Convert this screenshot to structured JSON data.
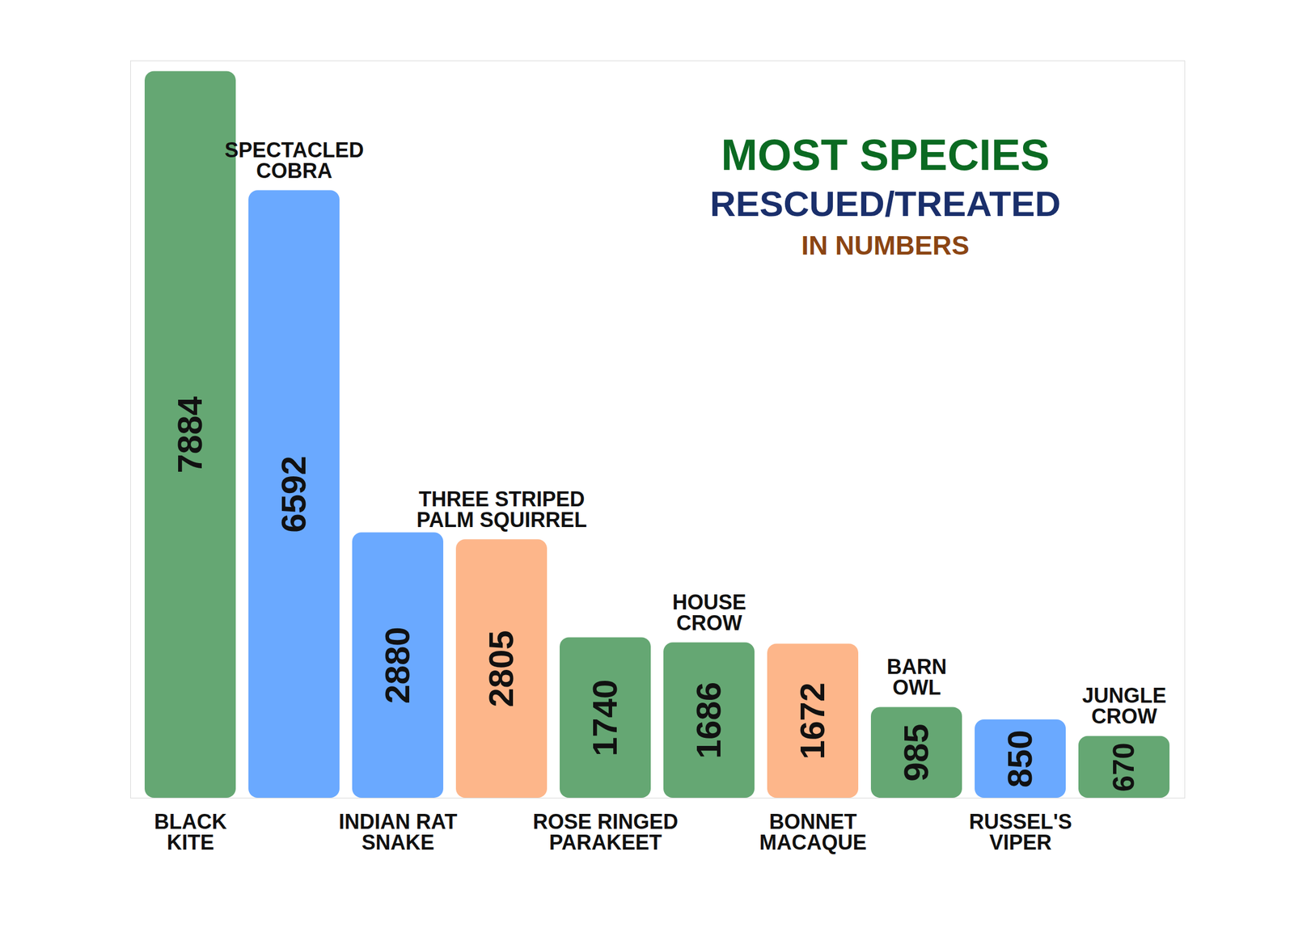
{
  "chart_data": {
    "type": "bar",
    "title": "MOST SPECIES",
    "subtitle": "RESCUED/TREATED",
    "annotations": [
      "IN NUMBERS"
    ],
    "categories": [
      "BLACK KITE",
      "SPECTACLED COBRA",
      "INDIAN RAT SNAKE",
      "THREE STRIPED PALM SQUIRREL",
      "ROSE RINGED PARAKEET",
      "HOUSE CROW",
      "BONNET MACAQUE",
      "BARN OWL",
      "RUSSEL'S VIPER",
      "JUNGLE CROW"
    ],
    "values": [
      7884,
      6592,
      2880,
      2805,
      1740,
      1686,
      1672,
      985,
      850,
      670
    ],
    "colors": [
      "#65a773",
      "#6aa9ff",
      "#6aa9ff",
      "#fdb68a",
      "#65a773",
      "#65a773",
      "#fdb68a",
      "#65a773",
      "#6aa9ff",
      "#65a773"
    ],
    "ylim": [
      0,
      8000
    ],
    "yticks": [],
    "tick_labels": false,
    "data_labels": true
  }
}
